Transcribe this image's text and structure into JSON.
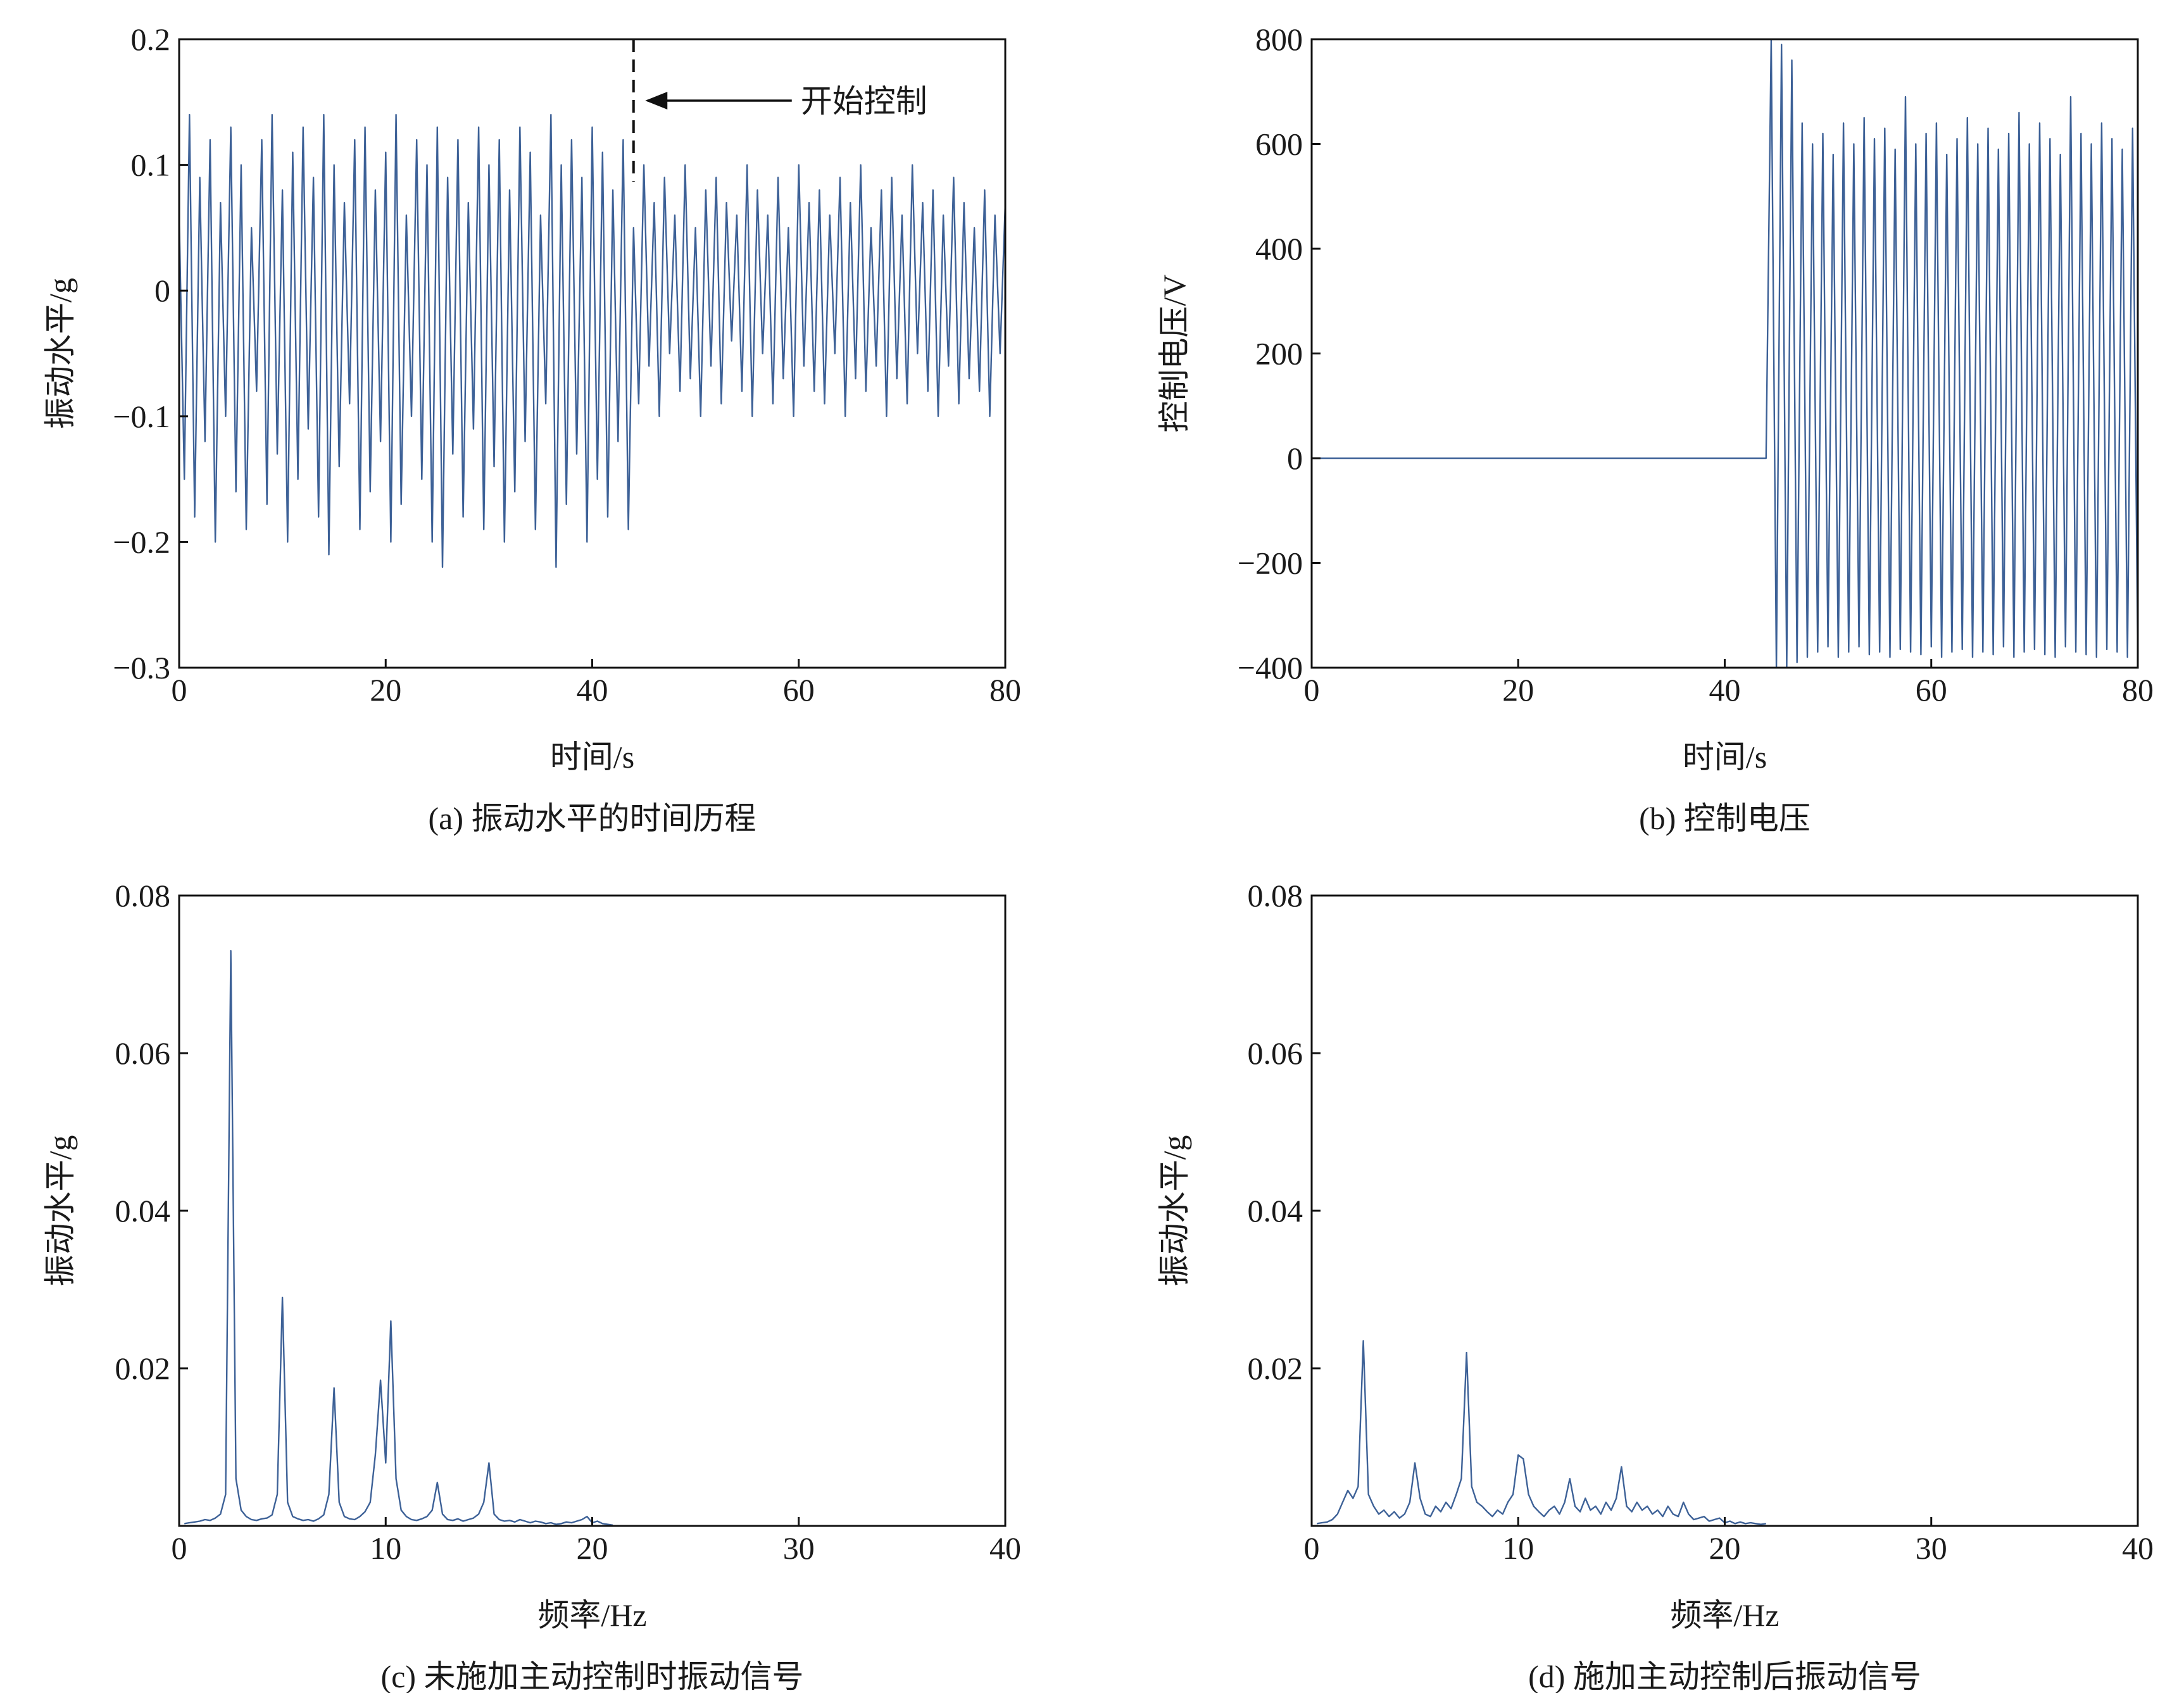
{
  "chart_data": [
    {
      "type": "line",
      "title": "(a) 振动水平的时间历程",
      "xlabel": "时间/s",
      "ylabel": "振动水平/g",
      "color": "#3d6197",
      "xlim": [
        0,
        80
      ],
      "ylim": [
        -0.3,
        0.2
      ],
      "xticks": [
        0,
        20,
        40,
        60,
        80
      ],
      "yticks": [
        {
          "value": -0.3,
          "label": "−0.3"
        },
        {
          "value": -0.2,
          "label": "−0.2"
        },
        {
          "value": -0.1,
          "label": "−0.1"
        },
        0,
        0.1,
        0.2
      ],
      "annotation": {
        "text": "开始控制",
        "x": 44
      },
      "x": [
        0,
        0.5,
        1,
        1.5,
        2,
        2.5,
        3,
        3.5,
        4,
        4.5,
        5,
        5.5,
        6,
        6.5,
        7,
        7.5,
        8,
        8.5,
        9,
        9.5,
        10,
        10.5,
        11,
        11.5,
        12,
        12.5,
        13,
        13.5,
        14,
        14.5,
        15,
        15.5,
        16,
        16.5,
        17,
        17.5,
        18,
        18.5,
        19,
        19.5,
        20,
        20.5,
        21,
        21.5,
        22,
        22.5,
        23,
        23.5,
        24,
        24.5,
        25,
        25.5,
        26,
        26.5,
        27,
        27.5,
        28,
        28.5,
        29,
        29.5,
        30,
        30.5,
        31,
        31.5,
        32,
        32.5,
        33,
        33.5,
        34,
        34.5,
        35,
        35.5,
        36,
        36.5,
        37,
        37.5,
        38,
        38.5,
        39,
        39.5,
        40,
        40.5,
        41,
        41.5,
        42,
        42.5,
        43,
        43.5,
        44,
        44.5,
        45,
        45.5,
        46,
        46.5,
        47,
        47.5,
        48,
        48.5,
        49,
        49.5,
        50,
        50.5,
        51,
        51.5,
        52,
        52.5,
        53,
        53.5,
        54,
        54.5,
        55,
        55.5,
        56,
        56.5,
        57,
        57.5,
        58,
        58.5,
        59,
        59.5,
        60,
        60.5,
        61,
        61.5,
        62,
        62.5,
        63,
        63.5,
        64,
        64.5,
        65,
        65.5,
        66,
        66.5,
        67,
        67.5,
        68,
        68.5,
        69,
        69.5,
        70,
        70.5,
        71,
        71.5,
        72,
        72.5,
        73,
        73.5,
        74,
        74.5,
        75,
        75.5,
        76,
        76.5,
        77,
        77.5,
        78,
        78.5,
        79,
        79.5,
        80
      ],
      "values": [
        0.06,
        -0.15,
        0.14,
        -0.18,
        0.09,
        -0.12,
        0.12,
        -0.2,
        0.07,
        -0.1,
        0.13,
        -0.16,
        0.1,
        -0.19,
        0.05,
        -0.08,
        0.12,
        -0.17,
        0.14,
        -0.13,
        0.08,
        -0.2,
        0.11,
        -0.15,
        0.13,
        -0.11,
        0.09,
        -0.18,
        0.14,
        -0.21,
        0.1,
        -0.14,
        0.07,
        -0.09,
        0.12,
        -0.19,
        0.13,
        -0.16,
        0.08,
        -0.12,
        0.11,
        -0.2,
        0.14,
        -0.17,
        0.06,
        -0.1,
        0.12,
        -0.15,
        0.1,
        -0.2,
        0.13,
        -0.22,
        0.09,
        -0.13,
        0.12,
        -0.18,
        0.07,
        -0.11,
        0.13,
        -0.19,
        0.1,
        -0.14,
        0.12,
        -0.2,
        0.08,
        -0.16,
        0.13,
        -0.12,
        0.11,
        -0.19,
        0.06,
        -0.09,
        0.14,
        -0.22,
        0.1,
        -0.17,
        0.12,
        -0.13,
        0.09,
        -0.2,
        0.13,
        -0.15,
        0.11,
        -0.18,
        0.08,
        -0.12,
        0.12,
        -0.19,
        0.05,
        -0.09,
        0.1,
        -0.06,
        0.07,
        -0.1,
        0.09,
        -0.05,
        0.06,
        -0.08,
        0.1,
        -0.07,
        0.05,
        -0.1,
        0.08,
        -0.06,
        0.09,
        -0.09,
        0.07,
        -0.04,
        0.06,
        -0.08,
        0.1,
        -0.1,
        0.08,
        -0.05,
        0.06,
        -0.09,
        0.09,
        -0.07,
        0.05,
        -0.1,
        0.1,
        -0.06,
        0.07,
        -0.08,
        0.08,
        -0.09,
        0.06,
        -0.05,
        0.09,
        -0.1,
        0.07,
        -0.07,
        0.1,
        -0.08,
        0.05,
        -0.06,
        0.08,
        -0.1,
        0.09,
        -0.07,
        0.06,
        -0.09,
        0.1,
        -0.05,
        0.07,
        -0.08,
        0.08,
        -0.1,
        0.06,
        -0.06,
        0.09,
        -0.09,
        0.07,
        -0.07,
        0.05,
        -0.08,
        0.08,
        -0.1,
        0.06,
        -0.05,
        0.07
      ]
    },
    {
      "type": "line",
      "title": "(b) 控制电压",
      "xlabel": "时间/s",
      "ylabel": "控制电压/V",
      "color": "#3d6197",
      "xlim": [
        0,
        80
      ],
      "ylim": [
        -400,
        800
      ],
      "xticks": [
        0,
        20,
        40,
        60,
        80
      ],
      "yticks": [
        {
          "value": -400,
          "label": "−400"
        },
        {
          "value": -200,
          "label": "−200"
        },
        0,
        200,
        400,
        600,
        800
      ],
      "x": [
        0,
        0.5,
        1,
        1.5,
        2,
        2.5,
        3,
        3.5,
        4,
        4.5,
        5,
        5.5,
        6,
        6.5,
        7,
        7.5,
        8,
        8.5,
        9,
        9.5,
        10,
        10.5,
        11,
        11.5,
        12,
        12.5,
        13,
        13.5,
        14,
        14.5,
        15,
        15.5,
        16,
        16.5,
        17,
        17.5,
        18,
        18.5,
        19,
        19.5,
        20,
        20.5,
        21,
        21.5,
        22,
        22.5,
        23,
        23.5,
        24,
        24.5,
        25,
        25.5,
        26,
        26.5,
        27,
        27.5,
        28,
        28.5,
        29,
        29.5,
        30,
        30.5,
        31,
        31.5,
        32,
        32.5,
        33,
        33.5,
        34,
        34.5,
        35,
        35.5,
        36,
        36.5,
        37,
        37.5,
        38,
        38.5,
        39,
        39.5,
        40,
        40.5,
        41,
        41.5,
        42,
        42.5,
        43,
        43.5,
        44,
        44.5,
        45,
        45.5,
        46,
        46.5,
        47,
        47.5,
        48,
        48.5,
        49,
        49.5,
        50,
        50.5,
        51,
        51.5,
        52,
        52.5,
        53,
        53.5,
        54,
        54.5,
        55,
        55.5,
        56,
        56.5,
        57,
        57.5,
        58,
        58.5,
        59,
        59.5,
        60,
        60.5,
        61,
        61.5,
        62,
        62.5,
        63,
        63.5,
        64,
        64.5,
        65,
        65.5,
        66,
        66.5,
        67,
        67.5,
        68,
        68.5,
        69,
        69.5,
        70,
        70.5,
        71,
        71.5,
        72,
        72.5,
        73,
        73.5,
        74,
        74.5,
        75,
        75.5,
        76,
        76.5,
        77,
        77.5,
        78,
        78.5,
        79,
        79.5,
        80
      ],
      "values": [
        0,
        0,
        0,
        0,
        0,
        0,
        0,
        0,
        0,
        0,
        0,
        0,
        0,
        0,
        0,
        0,
        0,
        0,
        0,
        0,
        0,
        0,
        0,
        0,
        0,
        0,
        0,
        0,
        0,
        0,
        0,
        0,
        0,
        0,
        0,
        0,
        0,
        0,
        0,
        0,
        0,
        0,
        0,
        0,
        0,
        0,
        0,
        0,
        0,
        0,
        0,
        0,
        0,
        0,
        0,
        0,
        0,
        0,
        0,
        0,
        0,
        0,
        0,
        0,
        0,
        0,
        0,
        0,
        0,
        0,
        0,
        0,
        0,
        0,
        0,
        0,
        0,
        0,
        0,
        0,
        0,
        0,
        0,
        0,
        0,
        0,
        0,
        0,
        0,
        800,
        -400,
        790,
        -400,
        760,
        -390,
        640,
        -380,
        600,
        -370,
        620,
        -360,
        580,
        -380,
        640,
        -370,
        600,
        -360,
        650,
        -375,
        610,
        -370,
        630,
        -380,
        590,
        -365,
        690,
        -370,
        600,
        -375,
        620,
        -360,
        640,
        -380,
        580,
        -370,
        610,
        -365,
        650,
        -380,
        600,
        -370,
        630,
        -375,
        590,
        -360,
        620,
        -380,
        660,
        -370,
        600,
        -365,
        640,
        -375,
        610,
        -380,
        580,
        -360,
        690,
        -370,
        620,
        -375,
        600,
        -380,
        640,
        -365,
        610,
        -370,
        590,
        -380,
        630,
        -375
      ]
    },
    {
      "type": "line",
      "title": "(c) 未施加主动控制时振动信号",
      "xlabel": "频率/Hz",
      "ylabel": "振动水平/g",
      "color": "#3d6197",
      "xlim": [
        0,
        40
      ],
      "ylim": [
        0,
        0.08
      ],
      "xticks": [
        0,
        10,
        20,
        30,
        40
      ],
      "yticks": [
        0.02,
        0.04,
        0.06,
        0.08
      ],
      "x": [
        0.25,
        0.5,
        0.75,
        1,
        1.25,
        1.5,
        1.75,
        2,
        2.25,
        2.5,
        2.75,
        3,
        3.25,
        3.5,
        3.75,
        4,
        4.25,
        4.5,
        4.75,
        5,
        5.25,
        5.5,
        5.75,
        6,
        6.25,
        6.5,
        6.75,
        7,
        7.25,
        7.5,
        7.75,
        8,
        8.25,
        8.5,
        8.75,
        9,
        9.25,
        9.5,
        9.75,
        10,
        10.25,
        10.5,
        10.75,
        11,
        11.25,
        11.5,
        11.75,
        12,
        12.25,
        12.5,
        12.75,
        13,
        13.25,
        13.5,
        13.75,
        14,
        14.25,
        14.5,
        14.75,
        15,
        15.25,
        15.5,
        15.75,
        16,
        16.25,
        16.5,
        16.75,
        17,
        17.25,
        17.5,
        17.75,
        18,
        18.25,
        18.5,
        18.75,
        19,
        19.25,
        19.5,
        19.75,
        20,
        20.25,
        20.5,
        20.75,
        21
      ],
      "values": [
        0.0003,
        0.0004,
        0.0005,
        0.0006,
        0.0008,
        0.0007,
        0.001,
        0.0015,
        0.004,
        0.073,
        0.006,
        0.002,
        0.0012,
        0.0008,
        0.0007,
        0.0009,
        0.001,
        0.0014,
        0.004,
        0.029,
        0.003,
        0.0012,
        0.0009,
        0.0007,
        0.0008,
        0.0006,
        0.0009,
        0.0014,
        0.004,
        0.0175,
        0.003,
        0.0012,
        0.0009,
        0.0008,
        0.0012,
        0.0018,
        0.003,
        0.009,
        0.0185,
        0.008,
        0.026,
        0.006,
        0.002,
        0.0012,
        0.0008,
        0.0007,
        0.0009,
        0.0012,
        0.002,
        0.0055,
        0.0015,
        0.0008,
        0.0007,
        0.0009,
        0.0006,
        0.0008,
        0.001,
        0.0015,
        0.003,
        0.008,
        0.0015,
        0.0008,
        0.0006,
        0.0007,
        0.0005,
        0.0008,
        0.0006,
        0.0004,
        0.0006,
        0.0005,
        0.0003,
        0.0004,
        0.0002,
        0.0003,
        0.0005,
        0.0004,
        0.0006,
        0.0008,
        0.0012,
        0.0004,
        0.0006,
        0.0003,
        0.0002,
        0.0001
      ]
    },
    {
      "type": "line",
      "title": "(d) 施加主动控制后振动信号",
      "xlabel": "频率/Hz",
      "ylabel": "振动水平/g",
      "color": "#3d6197",
      "xlim": [
        0,
        40
      ],
      "ylim": [
        0,
        0.08
      ],
      "xticks": [
        0,
        10,
        20,
        30,
        40
      ],
      "yticks": [
        0.02,
        0.04,
        0.06,
        0.08
      ],
      "x": [
        0.25,
        0.5,
        0.75,
        1,
        1.25,
        1.5,
        1.75,
        2,
        2.25,
        2.5,
        2.75,
        3,
        3.25,
        3.5,
        3.75,
        4,
        4.25,
        4.5,
        4.75,
        5,
        5.25,
        5.5,
        5.75,
        6,
        6.25,
        6.5,
        6.75,
        7,
        7.25,
        7.5,
        7.75,
        8,
        8.25,
        8.5,
        8.75,
        9,
        9.25,
        9.5,
        9.75,
        10,
        10.25,
        10.5,
        10.75,
        11,
        11.25,
        11.5,
        11.75,
        12,
        12.25,
        12.5,
        12.75,
        13,
        13.25,
        13.5,
        13.75,
        14,
        14.25,
        14.5,
        14.75,
        15,
        15.25,
        15.5,
        15.75,
        16,
        16.25,
        16.5,
        16.75,
        17,
        17.25,
        17.5,
        17.75,
        18,
        18.25,
        18.5,
        18.75,
        19,
        19.25,
        19.5,
        19.75,
        20,
        20.25,
        20.5,
        20.75,
        21,
        21.25,
        21.5,
        21.75,
        22
      ],
      "values": [
        0.0003,
        0.0004,
        0.0005,
        0.0008,
        0.0015,
        0.003,
        0.0045,
        0.0035,
        0.005,
        0.0235,
        0.004,
        0.0025,
        0.0015,
        0.002,
        0.0012,
        0.0018,
        0.001,
        0.0015,
        0.003,
        0.008,
        0.0035,
        0.0015,
        0.0012,
        0.0025,
        0.0018,
        0.003,
        0.0022,
        0.004,
        0.006,
        0.022,
        0.005,
        0.003,
        0.0025,
        0.0018,
        0.0012,
        0.002,
        0.0015,
        0.003,
        0.004,
        0.009,
        0.0085,
        0.004,
        0.0025,
        0.0018,
        0.0012,
        0.002,
        0.0025,
        0.0015,
        0.003,
        0.006,
        0.0025,
        0.0018,
        0.0035,
        0.002,
        0.0025,
        0.0015,
        0.003,
        0.002,
        0.0035,
        0.0075,
        0.0025,
        0.0018,
        0.003,
        0.002,
        0.0025,
        0.0015,
        0.002,
        0.0012,
        0.0025,
        0.0015,
        0.0012,
        0.003,
        0.0015,
        0.0008,
        0.001,
        0.0012,
        0.0006,
        0.0008,
        0.001,
        0.0004,
        0.0006,
        0.0003,
        0.0005,
        0.0003,
        0.0004,
        0.0003,
        0.0002,
        0.0003
      ]
    }
  ]
}
